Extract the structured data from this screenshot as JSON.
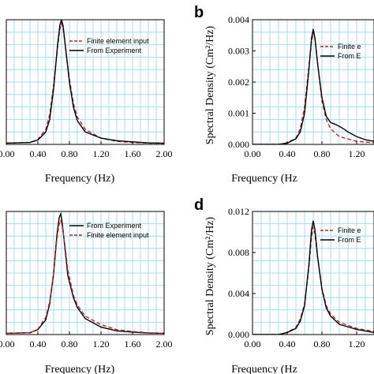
{
  "chart_data": [
    {
      "type": "line",
      "panel_label": "",
      "xlabel": "Frequency (Hz)",
      "ylabel": "",
      "xlim": [
        0.0,
        2.0
      ],
      "xticks": [
        "0.00",
        "0.40",
        "0.80",
        "1.20",
        "1.60",
        "2.00"
      ],
      "ylim": [
        0,
        1.0
      ],
      "yticks": [],
      "grid": true,
      "legend_position": "top-right",
      "series": [
        {
          "name": "Finite element input",
          "color": "#cc2222",
          "dash": "dashed",
          "x": [
            0.0,
            0.3,
            0.4,
            0.5,
            0.55,
            0.6,
            0.65,
            0.68,
            0.7,
            0.72,
            0.75,
            0.8,
            0.85,
            0.9,
            1.0,
            1.2,
            1.4,
            1.6,
            1.8,
            2.0
          ],
          "y": [
            0.01,
            0.015,
            0.04,
            0.12,
            0.24,
            0.48,
            0.78,
            0.93,
            0.97,
            0.93,
            0.78,
            0.52,
            0.33,
            0.22,
            0.12,
            0.05,
            0.025,
            0.015,
            0.01,
            0.008
          ]
        },
        {
          "name": "From Experiment",
          "color": "#000000",
          "dash": "solid",
          "x": [
            0.0,
            0.3,
            0.4,
            0.5,
            0.55,
            0.6,
            0.65,
            0.68,
            0.7,
            0.72,
            0.75,
            0.8,
            0.85,
            0.9,
            1.0,
            1.2,
            1.4,
            1.6,
            1.8,
            2.0
          ],
          "y": [
            0.01,
            0.015,
            0.035,
            0.1,
            0.2,
            0.45,
            0.8,
            0.96,
            1.0,
            0.95,
            0.78,
            0.5,
            0.3,
            0.19,
            0.1,
            0.05,
            0.03,
            0.02,
            0.012,
            0.01
          ]
        }
      ]
    },
    {
      "type": "line",
      "panel_label": "b",
      "xlabel": "Frequency (Hz",
      "ylabel": "Spectral Density (Cm²/Hz)",
      "xlim": [
        0.0,
        1.4
      ],
      "xticks": [
        "0.00",
        "0.40",
        "0.80",
        "1.20"
      ],
      "ylim": [
        0,
        0.004
      ],
      "yticks": [
        "0.000",
        "0.001",
        "0.002",
        "0.003",
        "0.004"
      ],
      "grid": true,
      "legend_position": "top-right",
      "series": [
        {
          "name": "Finite e",
          "color": "#cc2222",
          "dash": "dashed",
          "x": [
            0.0,
            0.3,
            0.4,
            0.5,
            0.55,
            0.6,
            0.65,
            0.68,
            0.7,
            0.72,
            0.75,
            0.8,
            0.85,
            0.9,
            1.0,
            1.2,
            1.4
          ],
          "y": [
            0.0,
            0.0,
            5e-05,
            0.0002,
            0.0005,
            0.0012,
            0.0025,
            0.0033,
            0.0036,
            0.0034,
            0.0026,
            0.0014,
            0.0008,
            0.0005,
            0.00025,
            0.0001,
            5e-05
          ]
        },
        {
          "name": "From E",
          "color": "#000000",
          "dash": "solid",
          "x": [
            0.0,
            0.3,
            0.4,
            0.5,
            0.55,
            0.6,
            0.65,
            0.68,
            0.7,
            0.72,
            0.75,
            0.8,
            0.85,
            0.9,
            0.95,
            1.0,
            1.05,
            1.1,
            1.2,
            1.3,
            1.4
          ],
          "y": [
            0.0,
            0.0,
            4e-05,
            0.00018,
            0.0004,
            0.001,
            0.0024,
            0.0034,
            0.0037,
            0.0034,
            0.0026,
            0.0015,
            0.0009,
            0.0007,
            0.00065,
            0.00058,
            0.0005,
            0.0004,
            0.00025,
            0.00015,
            0.0001
          ]
        }
      ]
    },
    {
      "type": "line",
      "panel_label": "",
      "xlabel": "Frequency (Hz)",
      "ylabel": "",
      "xlim": [
        0.0,
        2.0
      ],
      "xticks": [
        "0.00",
        "0.40",
        "0.80",
        "1.20",
        "1.60",
        "2.00"
      ],
      "ylim": [
        0,
        1.0
      ],
      "yticks": [],
      "grid": true,
      "legend_position": "top-right",
      "series": [
        {
          "name": "From Experiment",
          "color": "#000000",
          "dash": "solid",
          "x": [
            0.0,
            0.3,
            0.4,
            0.5,
            0.55,
            0.6,
            0.64,
            0.67,
            0.69,
            0.71,
            0.74,
            0.78,
            0.85,
            0.9,
            1.0,
            1.2,
            1.4,
            1.6,
            1.8,
            2.0
          ],
          "y": [
            0.01,
            0.015,
            0.04,
            0.12,
            0.25,
            0.5,
            0.8,
            0.95,
            0.98,
            0.9,
            0.72,
            0.48,
            0.3,
            0.22,
            0.13,
            0.06,
            0.03,
            0.02,
            0.012,
            0.01
          ]
        },
        {
          "name": "Finite element input",
          "color": "#cc2222",
          "dash": "dashed",
          "x": [
            0.0,
            0.3,
            0.4,
            0.5,
            0.55,
            0.6,
            0.64,
            0.67,
            0.69,
            0.71,
            0.74,
            0.78,
            0.85,
            0.9,
            1.0,
            1.2,
            1.4,
            1.6,
            1.8,
            2.0
          ],
          "y": [
            0.01,
            0.015,
            0.045,
            0.14,
            0.27,
            0.5,
            0.77,
            0.9,
            0.93,
            0.88,
            0.74,
            0.52,
            0.32,
            0.24,
            0.15,
            0.08,
            0.04,
            0.025,
            0.015,
            0.01
          ]
        }
      ]
    },
    {
      "type": "line",
      "panel_label": "d",
      "xlabel": "Frequency (Hz",
      "ylabel": "Spectral Density (Cm²/Hz)",
      "xlim": [
        0.0,
        1.4
      ],
      "xticks": [
        "0.00",
        "0.40",
        "0.80",
        "1.20"
      ],
      "ylim": [
        0,
        0.012
      ],
      "yticks": [
        "0.000",
        "0.004",
        "0.008",
        "0.012"
      ],
      "grid": true,
      "legend_position": "top-right",
      "series": [
        {
          "name": "Finite e",
          "color": "#cc2222",
          "dash": "dashed",
          "x": [
            0.0,
            0.3,
            0.4,
            0.5,
            0.55,
            0.6,
            0.65,
            0.68,
            0.7,
            0.72,
            0.75,
            0.8,
            0.85,
            0.9,
            1.0,
            1.2,
            1.4
          ],
          "y": [
            0.0,
            0.0,
            0.0002,
            0.0007,
            0.0015,
            0.003,
            0.0065,
            0.0095,
            0.0105,
            0.0098,
            0.0075,
            0.0045,
            0.0028,
            0.002,
            0.0012,
            0.0006,
            0.0003
          ]
        },
        {
          "name": "From E",
          "color": "#000000",
          "dash": "solid",
          "x": [
            0.0,
            0.3,
            0.4,
            0.5,
            0.55,
            0.6,
            0.65,
            0.68,
            0.7,
            0.72,
            0.75,
            0.8,
            0.85,
            0.9,
            1.0,
            1.2,
            1.4
          ],
          "y": [
            0.0,
            0.0,
            0.0002,
            0.0006,
            0.0013,
            0.0028,
            0.0068,
            0.0102,
            0.0111,
            0.0102,
            0.0076,
            0.0044,
            0.0026,
            0.0018,
            0.001,
            0.0005,
            0.0002
          ]
        }
      ]
    }
  ]
}
